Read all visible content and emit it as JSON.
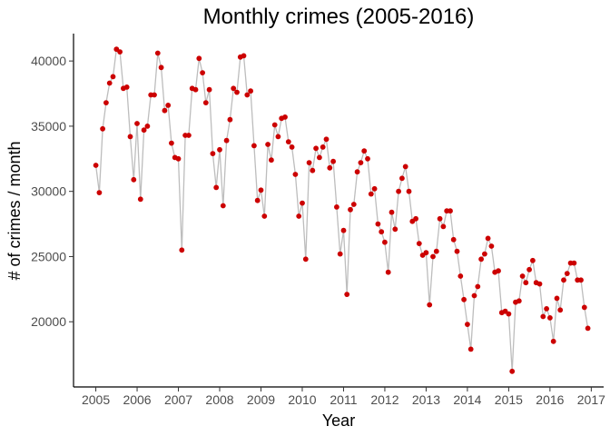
{
  "chart_data": {
    "type": "line",
    "title": "Monthly crimes (2005-2016)",
    "xlabel": "Year",
    "ylabel": "# of crimes / month",
    "xlim": [
      2004.46,
      2017.3
    ],
    "ylim": [
      15000,
      42100
    ],
    "x_ticks": [
      2005,
      2006,
      2007,
      2008,
      2009,
      2010,
      2011,
      2012,
      2013,
      2014,
      2015,
      2016,
      2017
    ],
    "y_ticks": [
      20000,
      25000,
      30000,
      35000,
      40000
    ],
    "x_tick_labels": [
      "2005",
      "2006",
      "2007",
      "2008",
      "2009",
      "2010",
      "2011",
      "2012",
      "2013",
      "2014",
      "2015",
      "2016",
      "2017"
    ],
    "y_tick_labels": [
      "20000",
      "25000",
      "30000",
      "35000",
      "40000"
    ],
    "grid": false,
    "series": [
      {
        "x_start": 2005,
        "x_step_months": 1,
        "values": [
          32000,
          29900,
          34800,
          36800,
          38300,
          38800,
          40900,
          40700,
          37900,
          38000,
          34200,
          30900,
          35200,
          29400,
          34700,
          35000,
          37400,
          37400,
          40600,
          39500,
          36200,
          36600,
          33700,
          32600,
          32500,
          25500,
          34300,
          34300,
          37900,
          37800,
          40200,
          39100,
          36800,
          37800,
          32900,
          30300,
          33200,
          28900,
          33900,
          35500,
          37900,
          37600,
          40300,
          40400,
          37400,
          37700,
          33500,
          29300,
          30100,
          28100,
          33600,
          32400,
          35100,
          34200,
          35600,
          35700,
          33800,
          33400,
          31300,
          28100,
          29100,
          24800,
          32200,
          31600,
          33300,
          32600,
          33400,
          34000,
          31800,
          32300,
          28800,
          25200,
          27000,
          22100,
          28600,
          29000,
          31500,
          32200,
          33100,
          32500,
          29800,
          30200,
          27500,
          26900,
          26100,
          23800,
          28400,
          27100,
          30000,
          31000,
          31900,
          30000,
          27700,
          27900,
          26000,
          25100,
          25300,
          21300,
          25000,
          25400,
          27900,
          27300,
          28500,
          28500,
          26300,
          25400,
          23500,
          21700,
          19800,
          17900,
          22000,
          22700,
          24800,
          25200,
          26400,
          25800,
          23800,
          23900,
          20700,
          20800,
          20600,
          16200,
          21500,
          21600,
          23500,
          23000,
          24000,
          24700,
          23000,
          22900,
          20400,
          21000,
          20300,
          18500,
          21800,
          20900,
          23200,
          23700,
          24500,
          24500,
          23200,
          23200,
          21100,
          19500
        ]
      }
    ],
    "colors": {
      "points": "#cc0000",
      "line": "#bdbdbd",
      "axis": "#000000",
      "tick_text": "#4d4d4d"
    }
  }
}
